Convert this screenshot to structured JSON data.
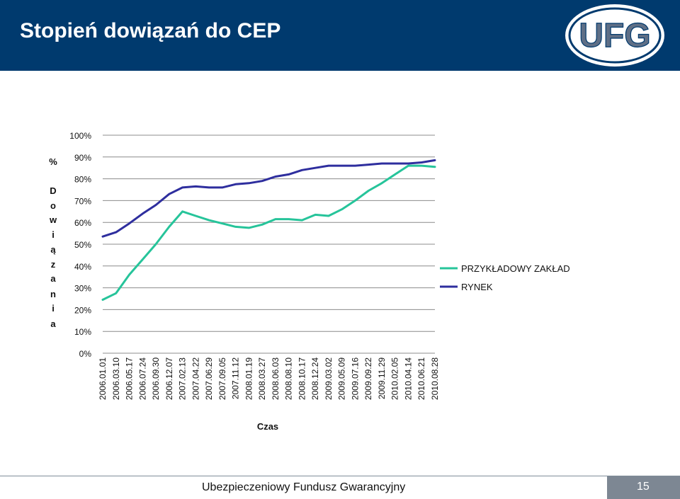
{
  "header": {
    "title": "Stopień dowiązań do CEP"
  },
  "logo": {
    "icon": "ufg-logo",
    "text": "UFG"
  },
  "footer": {
    "text": "Ubezpieczeniowy Fundusz Gwarancyjny",
    "page_number": "15"
  },
  "colors": {
    "header_bg": "#003a6e",
    "series_1": "#26c49a",
    "series_2": "#2e2e9e",
    "footer_box": "#7d8793"
  },
  "chart_data": {
    "type": "line",
    "title": "",
    "xlabel": "Czas",
    "ylabel": "% Dowiązania",
    "ylabel_chars": [
      "%",
      "D",
      "o",
      "w",
      "i",
      "ą",
      "z",
      "a",
      "n",
      "i",
      "a"
    ],
    "ylim": [
      0,
      100
    ],
    "yticks": [
      "0%",
      "10%",
      "20%",
      "30%",
      "40%",
      "50%",
      "60%",
      "70%",
      "80%",
      "90%",
      "100%"
    ],
    "grid": true,
    "legend_position": "right",
    "categories": [
      "2006.01.01",
      "2006.03.10",
      "2006.05.17",
      "2006.07.24",
      "2006.09.30",
      "2006.12.07",
      "2007.02.13",
      "2007.04.22",
      "2007.06.29",
      "2007.09.05",
      "2007.11.12",
      "2008.01.19",
      "2008.03.27",
      "2008.06.03",
      "2008.08.10",
      "2008.10.17",
      "2008.12.24",
      "2009.03.02",
      "2009.05.09",
      "2009.07.16",
      "2009.09.22",
      "2009.11.29",
      "2010.02.05",
      "2010.04.14",
      "2010.06.21",
      "2010.08.28"
    ],
    "series": [
      {
        "name": "PRZYKŁADOWY ZAKŁAD",
        "color": "#26c49a",
        "values": [
          24.5,
          27.5,
          36,
          43,
          50,
          58,
          65,
          63,
          61,
          59.5,
          58,
          57.5,
          59,
          61.5,
          61.5,
          61,
          63.5,
          63,
          66,
          70,
          74.5,
          78,
          82,
          86,
          86,
          85.5
        ]
      },
      {
        "name": "RYNEK",
        "color": "#2e2e9e",
        "values": [
          53.5,
          55.5,
          59.5,
          64,
          68,
          73,
          76,
          76.5,
          76,
          76,
          77.5,
          78,
          79,
          81,
          82,
          84,
          85,
          86,
          86,
          86,
          86.5,
          87,
          87,
          87,
          87.5,
          88.5
        ]
      }
    ]
  }
}
